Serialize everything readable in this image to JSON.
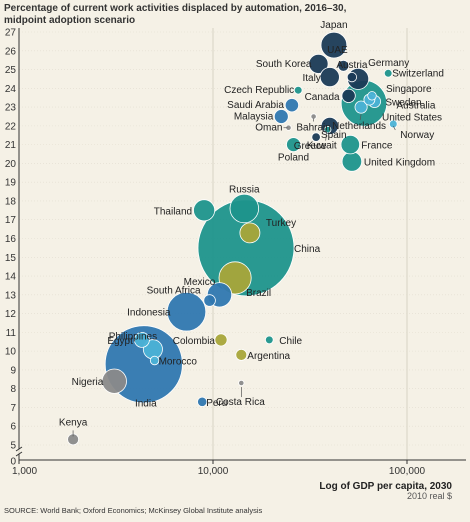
{
  "title_line1": "Percentage of current work activities displaced by automation, 2016–30,",
  "title_line2": "midpoint adoption scenario",
  "source": "SOURCE: World Bank; Oxford Economics; McKinsey Global Institute analysis",
  "chart_data": {
    "type": "bubble-scatter",
    "x_scale": "log",
    "xlabel": "Log of GDP per capita, 2030",
    "xunit": "2010 real $",
    "x_ticks": [
      1000,
      10000,
      100000
    ],
    "x_tick_labels": [
      "1,000",
      "10,000",
      "100,000"
    ],
    "xlim": [
      1000,
      200000
    ],
    "ylim": [
      4,
      27
    ],
    "y_ticks": [
      0,
      5,
      6,
      7,
      8,
      9,
      10,
      11,
      12,
      13,
      14,
      15,
      16,
      17,
      18,
      19,
      20,
      21,
      22,
      23,
      24,
      25,
      26,
      27
    ],
    "y_axis_break": true,
    "colors": {
      "navy": "#1a3a56",
      "blue": "#2f77b0",
      "teal": "#1d948c",
      "light_blue": "#4bb2d6",
      "olive": "#a8a53a",
      "gray": "#8a8a8a"
    },
    "points": [
      {
        "name": "Japan",
        "x": 42000,
        "y": 26.3,
        "size": 4.5,
        "color": "navy"
      },
      {
        "name": "South Korea",
        "x": 35000,
        "y": 25.3,
        "size": 2.5,
        "color": "navy"
      },
      {
        "name": "UAE",
        "x": 47000,
        "y": 25.2,
        "size": 0.8,
        "color": "navy"
      },
      {
        "name": "Austria",
        "x": 52000,
        "y": 24.6,
        "size": 0.6,
        "color": "navy"
      },
      {
        "name": "Germany",
        "x": 56000,
        "y": 24.5,
        "size": 3.0,
        "color": "navy"
      },
      {
        "name": "Switzerland",
        "x": 80000,
        "y": 24.8,
        "size": 0.4,
        "color": "teal"
      },
      {
        "name": "Italy",
        "x": 40000,
        "y": 24.6,
        "size": 2.5,
        "color": "navy"
      },
      {
        "name": "Czech Republic",
        "x": 27500,
        "y": 23.9,
        "size": 0.4,
        "color": "teal"
      },
      {
        "name": "Canada",
        "x": 50000,
        "y": 23.6,
        "size": 1.2,
        "color": "navy"
      },
      {
        "name": "Singapore",
        "x": 66000,
        "y": 23.6,
        "size": 0.5,
        "color": "light_blue"
      },
      {
        "name": "United States",
        "x": 60000,
        "y": 23.2,
        "size": 14.0,
        "color": "teal"
      },
      {
        "name": "Sweden",
        "x": 64000,
        "y": 23.4,
        "size": 0.8,
        "color": "light_blue"
      },
      {
        "name": "Australia",
        "x": 68000,
        "y": 23.3,
        "size": 1.0,
        "color": "light_blue"
      },
      {
        "name": "Saudi Arabia",
        "x": 25500,
        "y": 23.1,
        "size": 1.2,
        "color": "blue"
      },
      {
        "name": "Netherlands",
        "x": 58000,
        "y": 23.0,
        "size": 1.0,
        "color": "light_blue"
      },
      {
        "name": "Malaysia",
        "x": 22500,
        "y": 22.5,
        "size": 1.3,
        "color": "blue"
      },
      {
        "name": "Bahrain",
        "x": 33000,
        "y": 22.5,
        "size": 0.2,
        "color": "gray"
      },
      {
        "name": "Spain",
        "x": 40000,
        "y": 22.0,
        "size": 2.0,
        "color": "navy"
      },
      {
        "name": "Oman",
        "x": 24500,
        "y": 21.9,
        "size": 0.2,
        "color": "gray"
      },
      {
        "name": "Norway",
        "x": 85000,
        "y": 22.1,
        "size": 0.4,
        "color": "light_blue"
      },
      {
        "name": "Greece",
        "x": 34000,
        "y": 21.4,
        "size": 0.5,
        "color": "navy"
      },
      {
        "name": "Kuwait",
        "x": 39000,
        "y": 21.8,
        "size": 0.3,
        "color": "teal"
      },
      {
        "name": "Poland",
        "x": 26000,
        "y": 21.0,
        "size": 1.3,
        "color": "teal"
      },
      {
        "name": "France",
        "x": 51000,
        "y": 21.0,
        "size": 2.3,
        "color": "teal"
      },
      {
        "name": "United Kingdom",
        "x": 52000,
        "y": 20.1,
        "size": 2.6,
        "color": "teal"
      },
      {
        "name": "Russia",
        "x": 14500,
        "y": 17.6,
        "size": 5.5,
        "color": "teal"
      },
      {
        "name": "Thailand",
        "x": 9000,
        "y": 17.5,
        "size": 3.0,
        "color": "teal"
      },
      {
        "name": "Turkey",
        "x": 15500,
        "y": 16.3,
        "size": 2.7,
        "color": "olive"
      },
      {
        "name": "China",
        "x": 14800,
        "y": 15.5,
        "size": 62.0,
        "color": "teal"
      },
      {
        "name": "Brazil",
        "x": 13000,
        "y": 13.9,
        "size": 7.0,
        "color": "olive"
      },
      {
        "name": "Mexico",
        "x": 10800,
        "y": 13.0,
        "size": 4.0,
        "color": "blue"
      },
      {
        "name": "South Africa",
        "x": 9600,
        "y": 12.7,
        "size": 0.9,
        "color": "blue"
      },
      {
        "name": "Indonesia",
        "x": 7300,
        "y": 12.1,
        "size": 10.0,
        "color": "blue"
      },
      {
        "name": "Chile",
        "x": 19500,
        "y": 10.6,
        "size": 0.4,
        "color": "teal"
      },
      {
        "name": "Colombia",
        "x": 11000,
        "y": 10.6,
        "size": 1.0,
        "color": "olive"
      },
      {
        "name": "Egypt",
        "x": 4300,
        "y": 10.6,
        "size": 1.5,
        "color": "light_blue"
      },
      {
        "name": "Philippines",
        "x": 4900,
        "y": 10.1,
        "size": 2.5,
        "color": "light_blue"
      },
      {
        "name": "Argentina",
        "x": 14000,
        "y": 9.8,
        "size": 0.8,
        "color": "olive"
      },
      {
        "name": "India",
        "x": 4400,
        "y": 9.3,
        "size": 40.0,
        "color": "blue"
      },
      {
        "name": "Morocco",
        "x": 5000,
        "y": 9.5,
        "size": 0.5,
        "color": "light_blue"
      },
      {
        "name": "Nigeria",
        "x": 3100,
        "y": 8.4,
        "size": 4.0,
        "color": "gray"
      },
      {
        "name": "Costa Rica",
        "x": 14000,
        "y": 8.3,
        "size": 0.2,
        "color": "gray"
      },
      {
        "name": "Peru",
        "x": 8800,
        "y": 7.3,
        "size": 0.6,
        "color": "blue"
      },
      {
        "name": "Kenya",
        "x": 1900,
        "y": 5.3,
        "size": 0.8,
        "color": "gray"
      }
    ]
  }
}
